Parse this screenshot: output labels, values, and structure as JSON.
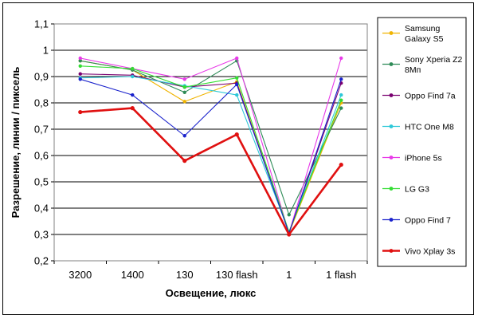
{
  "chart_data": {
    "type": "line",
    "title": "",
    "xlabel": "Освещение, люкс",
    "ylabel": "Разрешение, линии / пиксель",
    "categories": [
      "3200",
      "1400",
      "130",
      "130 flash",
      "1",
      "1 flash"
    ],
    "ylim": [
      0.2,
      1.1
    ],
    "yticks": [
      "0,2",
      "0,3",
      "0,4",
      "0,5",
      "0,6",
      "0,7",
      "0,8",
      "0,9",
      "1",
      "1,1"
    ],
    "ytick_values": [
      0.2,
      0.3,
      0.4,
      0.5,
      0.6,
      0.7,
      0.8,
      0.9,
      1.0,
      1.1
    ],
    "grid": "horizontal",
    "legend_position": "right",
    "series": [
      {
        "name": "Samsung Galaxy S5",
        "legend_lines": [
          "Samsung",
          "Galaxy S5"
        ],
        "color": "#f0b400",
        "values": [
          0.96,
          0.925,
          0.805,
          0.88,
          0.305,
          0.8
        ]
      },
      {
        "name": "Sony Xperia Z2 8Мп",
        "legend_lines": [
          "Sony Xperia Z2",
          "8Мп"
        ],
        "color": "#2e8b57",
        "values": [
          0.96,
          0.925,
          0.84,
          0.96,
          0.375,
          0.78
        ]
      },
      {
        "name": "Oppo Find 7a",
        "legend_lines": [
          "Oppo Find 7a"
        ],
        "color": "#7a0070",
        "values": [
          0.91,
          0.905,
          0.86,
          0.875,
          0.305,
          0.875
        ]
      },
      {
        "name": "HTC One M8",
        "legend_lines": [
          "HTC One M8"
        ],
        "color": "#2ec8d8",
        "values": [
          0.895,
          0.9,
          0.865,
          0.83,
          0.31,
          0.83
        ]
      },
      {
        "name": "iPhone 5s",
        "legend_lines": [
          "iPhone 5s"
        ],
        "color": "#e83ae8",
        "values": [
          0.97,
          0.93,
          0.89,
          0.97,
          0.305,
          0.97
        ]
      },
      {
        "name": "LG G3",
        "legend_lines": [
          "LG G3"
        ],
        "color": "#33dd33",
        "values": [
          0.94,
          0.93,
          0.86,
          0.895,
          0.31,
          0.81
        ]
      },
      {
        "name": "Oppo Find 7",
        "legend_lines": [
          "Oppo Find 7"
        ],
        "color": "#1a22cc",
        "values": [
          0.89,
          0.83,
          0.675,
          0.87,
          0.305,
          0.89
        ]
      },
      {
        "name": "Vivo Xplay 3s",
        "legend_lines": [
          "Vivo Xplay 3s"
        ],
        "color": "#e01010",
        "values": [
          0.765,
          0.78,
          0.58,
          0.68,
          0.3,
          0.565
        ],
        "bold": true
      }
    ]
  }
}
